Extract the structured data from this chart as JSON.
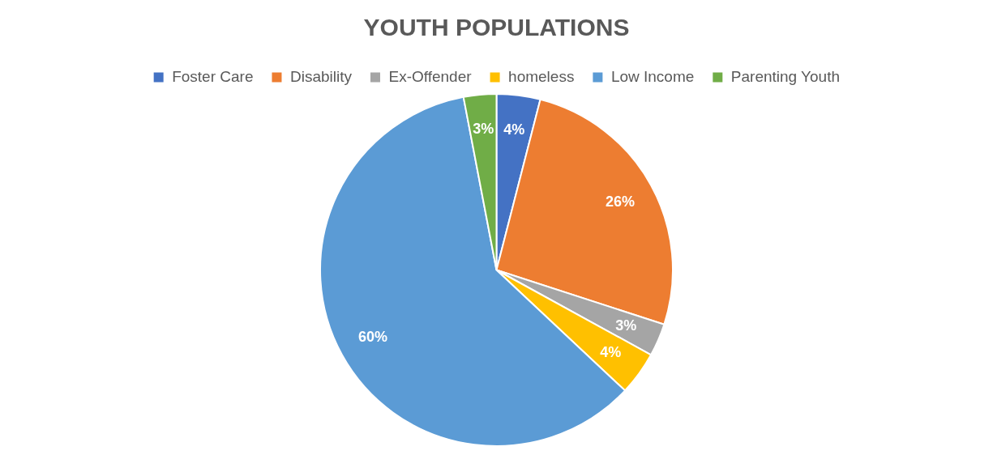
{
  "chart_data": {
    "type": "pie",
    "title": "YOUTH POPULATIONS",
    "categories": [
      "Foster Care",
      "Disability",
      "Ex-Offender",
      "homeless",
      "Low Income",
      "Parenting Youth"
    ],
    "values": [
      4,
      26,
      3,
      4,
      60,
      3
    ],
    "colors": [
      "#4472c4",
      "#ed7d31",
      "#a5a5a5",
      "#ffc000",
      "#5b9bd5",
      "#70ad47"
    ],
    "value_labels": [
      "4%",
      "26%",
      "3%",
      "4%",
      "60%",
      "3%"
    ],
    "legend": "top"
  }
}
